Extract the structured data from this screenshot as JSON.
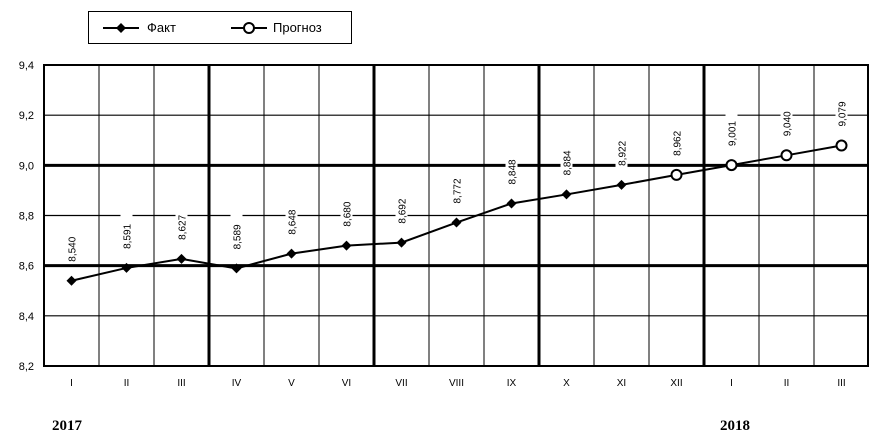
{
  "chart_data": {
    "type": "line",
    "categories": [
      "I",
      "II",
      "III",
      "IV",
      "V",
      "VI",
      "VII",
      "VIII",
      "IX",
      "X",
      "XI",
      "XII",
      "I",
      "II",
      "III"
    ],
    "series": [
      {
        "name": "Факт",
        "marker": "filled-diamond",
        "color": "#000000",
        "values": [
          8.54,
          8.591,
          8.627,
          8.589,
          8.648,
          8.68,
          8.692,
          8.772,
          8.848,
          8.884,
          8.922,
          8.962,
          null,
          null,
          null
        ]
      },
      {
        "name": "Прогноз",
        "marker": "open-circle",
        "color": "#000000",
        "values": [
          null,
          null,
          null,
          null,
          null,
          null,
          null,
          null,
          null,
          null,
          null,
          8.962,
          9.001,
          9.04,
          9.079
        ]
      }
    ],
    "data_labels": [
      "8,540",
      "8,591",
      "8,627",
      "8,589",
      "8,648",
      "8,680",
      "8,692",
      "8,772",
      "8,848",
      "8,884",
      "8,922",
      "8,962",
      "9,001",
      "9,040",
      "9,079"
    ],
    "ylim": [
      8.2,
      9.4
    ],
    "yticks": [
      8.2,
      8.4,
      8.6,
      8.8,
      9.0,
      9.2,
      9.4
    ],
    "ytick_labels": [
      "8,2",
      "8,4",
      "8,6",
      "8,8",
      "9,0",
      "9,2",
      "9,4"
    ],
    "year_labels": [
      {
        "text": "2017",
        "at_index": 0
      },
      {
        "text": "2018",
        "at_index": 12
      }
    ],
    "grid": true,
    "legend_position": "top-left",
    "title": "",
    "xlabel": "",
    "ylabel": ""
  }
}
